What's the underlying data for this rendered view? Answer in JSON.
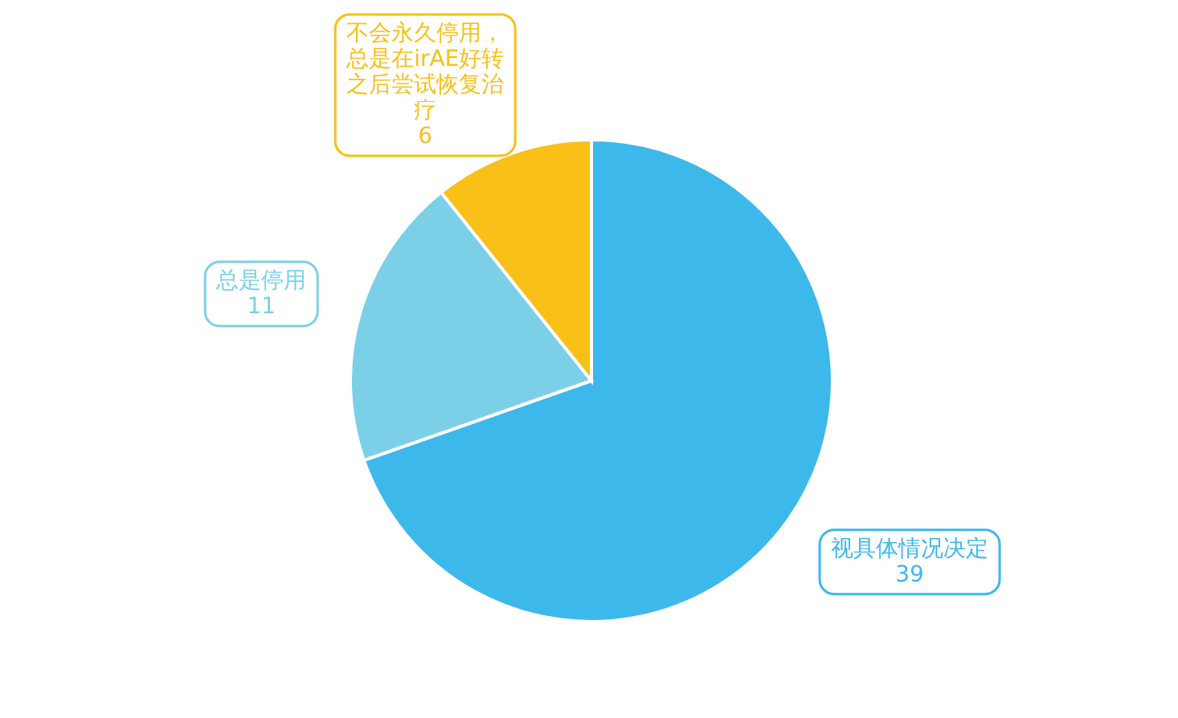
{
  "chart_data": {
    "type": "pie",
    "categories": [
      "视具体情况决定",
      "总是停用",
      "不会永久停用，总是在irAE好转之后尝试恢复治疗"
    ],
    "values": [
      39,
      11,
      6
    ],
    "colors": [
      "#3db8ea",
      "#7bd0e8",
      "#f9c018"
    ],
    "data_labels": true
  }
}
